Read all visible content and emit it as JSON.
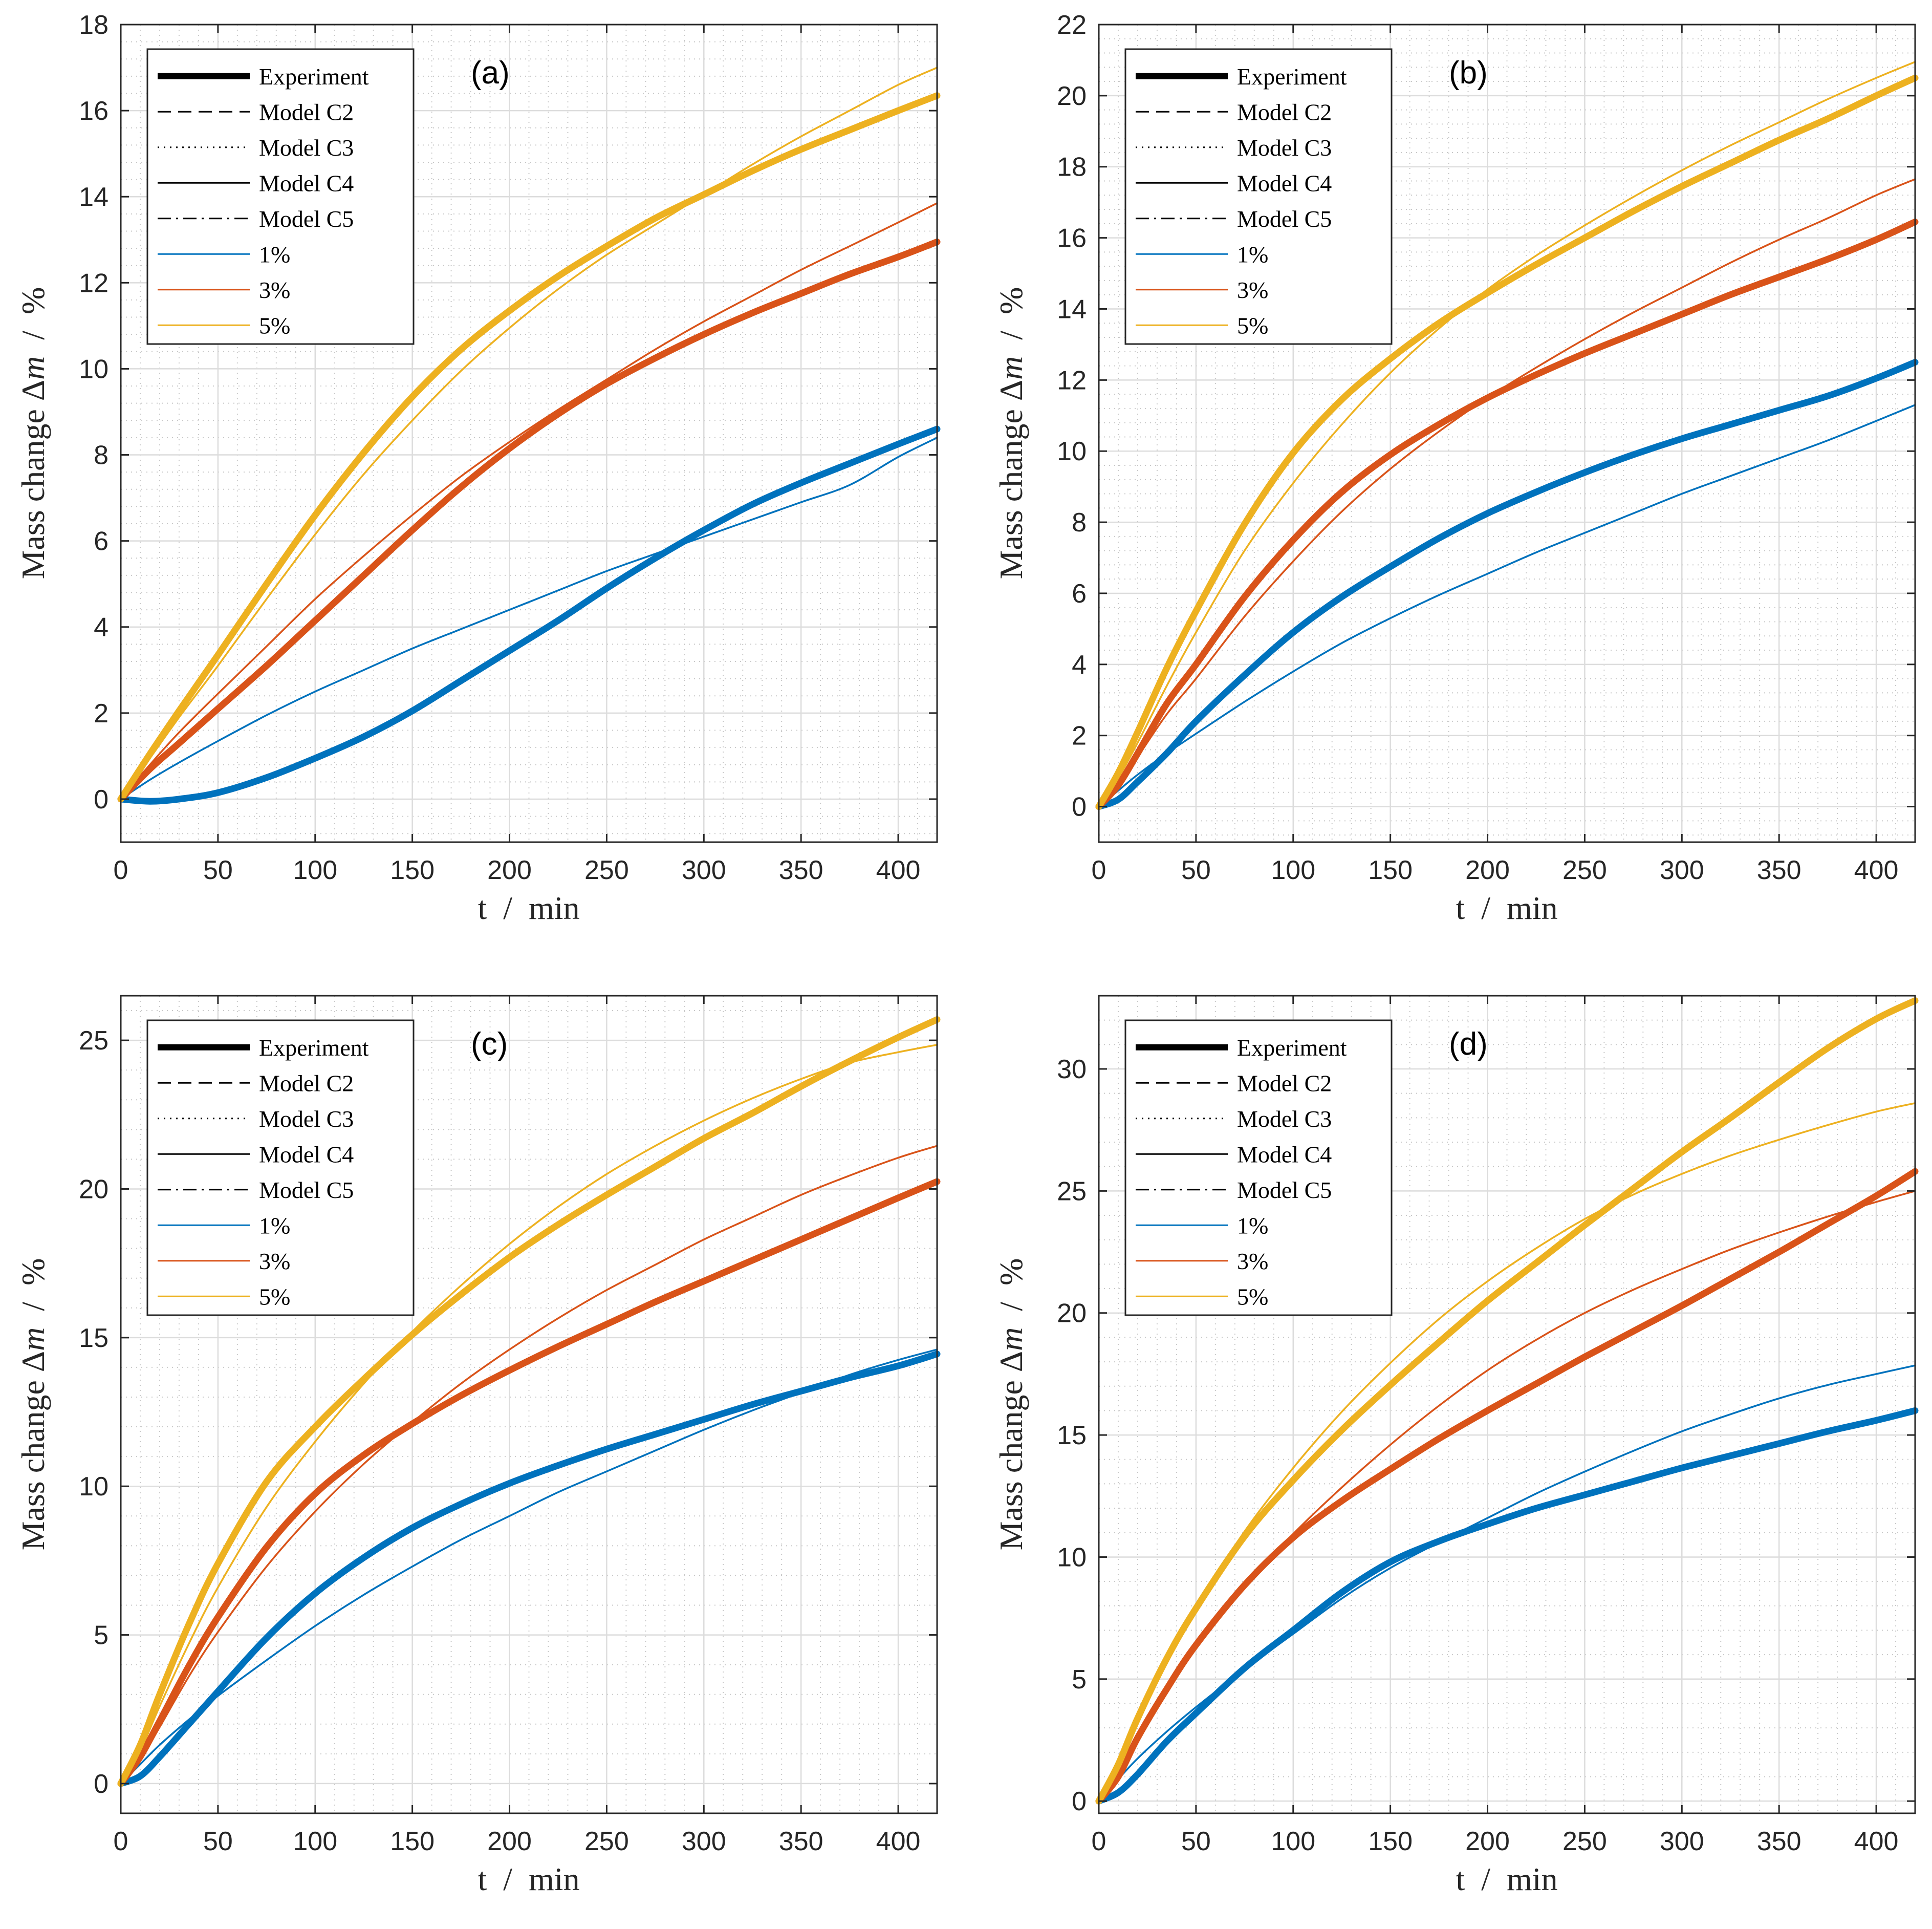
{
  "figure": {
    "xlabel": "t  /  min",
    "ylabel_prefix": "Mass change Δ",
    "ylabel_var": "m",
    "ylabel_sep": "  /  ",
    "ylabel_unit": "%"
  },
  "legend": [
    {
      "label": "Experiment",
      "style": "thick-solid",
      "color": "#000000"
    },
    {
      "label": "Model C2",
      "style": "dashed",
      "color": "#000000"
    },
    {
      "label": "Model C3",
      "style": "dotted",
      "color": "#000000"
    },
    {
      "label": "Model C4",
      "style": "solid",
      "color": "#000000"
    },
    {
      "label": "Model C5",
      "style": "dashdot",
      "color": "#000000"
    },
    {
      "label": "1%",
      "style": "solid",
      "color": "#0072BD"
    },
    {
      "label": "3%",
      "style": "solid",
      "color": "#D95319"
    },
    {
      "label": "5%",
      "style": "solid",
      "color": "#EDB120"
    }
  ],
  "chart_data": [
    {
      "type": "line",
      "tag": "(a)",
      "xlabel": "t  /  min",
      "ylabel": "Mass change Δm  /  %",
      "xlim": [
        0,
        420
      ],
      "ylim": [
        -1,
        18
      ],
      "xticks": [
        0,
        50,
        100,
        150,
        200,
        250,
        300,
        350,
        400
      ],
      "yticks": [
        0,
        2,
        4,
        6,
        8,
        10,
        12,
        14,
        16,
        18
      ],
      "grid": true,
      "legend_position": "top-left",
      "x": [
        0,
        15,
        30,
        50,
        75,
        100,
        125,
        150,
        175,
        200,
        225,
        250,
        275,
        300,
        325,
        350,
        375,
        400,
        420
      ],
      "series": [
        {
          "name": "1% Experiment",
          "kind": "experiment",
          "color": "#0072BD",
          "values": [
            0,
            -0.05,
            0.0,
            0.15,
            0.5,
            0.95,
            1.45,
            2.05,
            2.75,
            3.45,
            4.15,
            4.9,
            5.6,
            6.25,
            6.85,
            7.35,
            7.8,
            8.25,
            8.6
          ]
        },
        {
          "name": "1% Model",
          "kind": "model",
          "color": "#0072BD",
          "values": [
            0,
            0.45,
            0.85,
            1.35,
            1.95,
            2.5,
            3.0,
            3.5,
            3.95,
            4.4,
            4.85,
            5.3,
            5.7,
            6.1,
            6.5,
            6.9,
            7.3,
            7.95,
            8.4
          ]
        },
        {
          "name": "3% Experiment",
          "kind": "experiment",
          "color": "#D95319",
          "values": [
            0,
            0.7,
            1.3,
            2.1,
            3.1,
            4.15,
            5.2,
            6.25,
            7.25,
            8.15,
            8.95,
            9.65,
            10.25,
            10.8,
            11.3,
            11.75,
            12.2,
            12.6,
            12.95
          ]
        },
        {
          "name": "3% Model",
          "kind": "model",
          "color": "#D95319",
          "values": [
            0,
            0.8,
            1.55,
            2.45,
            3.55,
            4.65,
            5.65,
            6.6,
            7.5,
            8.3,
            9.05,
            9.75,
            10.45,
            11.1,
            11.7,
            12.3,
            12.85,
            13.4,
            13.85
          ]
        },
        {
          "name": "5% Experiment",
          "kind": "experiment",
          "color": "#EDB120",
          "values": [
            0,
            1.05,
            2.05,
            3.35,
            5.0,
            6.6,
            8.05,
            9.35,
            10.45,
            11.35,
            12.15,
            12.85,
            13.5,
            14.05,
            14.6,
            15.1,
            15.55,
            16.0,
            16.35
          ]
        },
        {
          "name": "5% Model",
          "kind": "model",
          "color": "#EDB120",
          "values": [
            0,
            0.95,
            1.9,
            3.1,
            4.65,
            6.15,
            7.55,
            8.8,
            9.95,
            10.95,
            11.85,
            12.65,
            13.35,
            14.05,
            14.75,
            15.4,
            16.0,
            16.6,
            17.0
          ]
        }
      ]
    },
    {
      "type": "line",
      "tag": "(b)",
      "xlabel": "t  /  min",
      "ylabel": "Mass change Δm  /  %",
      "xlim": [
        0,
        420
      ],
      "ylim": [
        -1,
        22
      ],
      "xticks": [
        0,
        50,
        100,
        150,
        200,
        250,
        300,
        350,
        400
      ],
      "yticks": [
        0,
        2,
        4,
        6,
        8,
        10,
        12,
        14,
        16,
        18,
        20,
        22
      ],
      "grid": true,
      "legend_position": "top-left",
      "x": [
        0,
        10,
        20,
        35,
        50,
        75,
        100,
        125,
        150,
        175,
        200,
        225,
        250,
        275,
        300,
        325,
        350,
        375,
        400,
        420
      ],
      "series": [
        {
          "name": "1% Experiment",
          "kind": "experiment",
          "color": "#0072BD",
          "values": [
            0,
            0.2,
            0.7,
            1.5,
            2.4,
            3.7,
            4.9,
            5.9,
            6.75,
            7.55,
            8.25,
            8.85,
            9.4,
            9.9,
            10.35,
            10.75,
            11.15,
            11.55,
            12.05,
            12.5
          ]
        },
        {
          "name": "1% Model",
          "kind": "model",
          "color": "#0072BD",
          "values": [
            0,
            0.45,
            0.9,
            1.5,
            2.05,
            2.95,
            3.8,
            4.6,
            5.3,
            5.95,
            6.55,
            7.15,
            7.7,
            8.25,
            8.8,
            9.3,
            9.8,
            10.3,
            10.85,
            11.3
          ]
        },
        {
          "name": "3% Experiment",
          "kind": "experiment",
          "color": "#D95319",
          "values": [
            0,
            0.6,
            1.5,
            2.9,
            4.0,
            5.9,
            7.5,
            8.85,
            9.9,
            10.75,
            11.5,
            12.15,
            12.75,
            13.3,
            13.85,
            14.4,
            14.9,
            15.4,
            15.95,
            16.45
          ]
        },
        {
          "name": "3% Model",
          "kind": "model",
          "color": "#D95319",
          "values": [
            0,
            0.6,
            1.4,
            2.6,
            3.6,
            5.35,
            6.9,
            8.3,
            9.5,
            10.55,
            11.5,
            12.35,
            13.15,
            13.9,
            14.6,
            15.3,
            15.95,
            16.55,
            17.2,
            17.65
          ]
        },
        {
          "name": "5% Experiment",
          "kind": "experiment",
          "color": "#EDB120",
          "values": [
            0,
            0.95,
            2.1,
            3.9,
            5.5,
            7.95,
            9.95,
            11.45,
            12.6,
            13.6,
            14.45,
            15.25,
            16.0,
            16.75,
            17.45,
            18.1,
            18.75,
            19.35,
            20.0,
            20.5
          ]
        },
        {
          "name": "5% Model",
          "kind": "model",
          "color": "#EDB120",
          "values": [
            0,
            0.8,
            1.8,
            3.4,
            4.9,
            7.2,
            9.1,
            10.75,
            12.2,
            13.45,
            14.55,
            15.5,
            16.35,
            17.15,
            17.9,
            18.6,
            19.25,
            19.9,
            20.5,
            20.95
          ]
        }
      ]
    },
    {
      "type": "line",
      "tag": "(c)",
      "xlabel": "t  /  min",
      "ylabel": "Mass change Δm  /  %",
      "xlim": [
        0,
        420
      ],
      "ylim": [
        -1,
        26.5
      ],
      "xticks": [
        0,
        50,
        100,
        150,
        200,
        250,
        300,
        350,
        400
      ],
      "yticks": [
        0,
        5,
        10,
        15,
        20,
        25
      ],
      "grid": true,
      "legend_position": "top-left",
      "x": [
        0,
        10,
        20,
        35,
        50,
        75,
        100,
        125,
        150,
        175,
        200,
        225,
        250,
        275,
        300,
        325,
        350,
        375,
        400,
        420
      ],
      "series": [
        {
          "name": "1% Experiment",
          "kind": "experiment",
          "color": "#0072BD",
          "values": [
            0,
            0.25,
            0.9,
            2.0,
            3.1,
            4.9,
            6.4,
            7.6,
            8.6,
            9.4,
            10.1,
            10.7,
            11.25,
            11.75,
            12.25,
            12.75,
            13.2,
            13.65,
            14.05,
            14.45
          ]
        },
        {
          "name": "1% Model",
          "kind": "model",
          "color": "#0072BD",
          "values": [
            0,
            0.65,
            1.3,
            2.15,
            2.95,
            4.15,
            5.3,
            6.35,
            7.3,
            8.2,
            9.0,
            9.8,
            10.5,
            11.2,
            11.9,
            12.55,
            13.15,
            13.75,
            14.25,
            14.6
          ]
        },
        {
          "name": "3% Experiment",
          "kind": "experiment",
          "color": "#D95319",
          "values": [
            0,
            0.9,
            2.1,
            3.95,
            5.6,
            7.95,
            9.75,
            11.05,
            12.1,
            13.05,
            13.9,
            14.7,
            15.45,
            16.2,
            16.9,
            17.6,
            18.3,
            19.0,
            19.7,
            20.25
          ]
        },
        {
          "name": "3% Model",
          "kind": "model",
          "color": "#D95319",
          "values": [
            0,
            0.8,
            1.9,
            3.6,
            5.1,
            7.3,
            9.15,
            10.75,
            12.15,
            13.45,
            14.6,
            15.65,
            16.6,
            17.45,
            18.3,
            19.05,
            19.8,
            20.45,
            21.05,
            21.45
          ]
        },
        {
          "name": "5% Experiment",
          "kind": "experiment",
          "color": "#EDB120",
          "values": [
            0,
            1.3,
            3.0,
            5.35,
            7.4,
            10.15,
            12.0,
            13.6,
            15.1,
            16.45,
            17.7,
            18.8,
            19.8,
            20.75,
            21.7,
            22.55,
            23.45,
            24.3,
            25.1,
            25.7
          ]
        },
        {
          "name": "5% Model",
          "kind": "model",
          "color": "#EDB120",
          "values": [
            0,
            1.1,
            2.6,
            4.7,
            6.6,
            9.3,
            11.5,
            13.45,
            15.2,
            16.75,
            18.15,
            19.4,
            20.5,
            21.45,
            22.3,
            23.05,
            23.7,
            24.25,
            24.6,
            24.85
          ]
        }
      ]
    },
    {
      "type": "line",
      "tag": "(d)",
      "xlabel": "t  /  min",
      "ylabel": "Mass change Δm  /  %",
      "xlim": [
        0,
        420
      ],
      "ylim": [
        -0.5,
        33
      ],
      "xticks": [
        0,
        50,
        100,
        150,
        200,
        250,
        300,
        350,
        400
      ],
      "yticks": [
        0,
        5,
        10,
        15,
        20,
        25,
        30
      ],
      "grid": true,
      "legend_position": "top-left",
      "x": [
        0,
        10,
        20,
        35,
        50,
        75,
        100,
        125,
        150,
        175,
        200,
        225,
        250,
        275,
        300,
        325,
        350,
        375,
        400,
        420
      ],
      "series": [
        {
          "name": "1% Experiment",
          "kind": "experiment",
          "color": "#0072BD",
          "values": [
            0,
            0.35,
            1.1,
            2.45,
            3.6,
            5.45,
            7.0,
            8.55,
            9.8,
            10.65,
            11.35,
            12.0,
            12.55,
            13.1,
            13.65,
            14.15,
            14.65,
            15.15,
            15.6,
            16.0
          ]
        },
        {
          "name": "1% Model",
          "kind": "model",
          "color": "#0072BD",
          "values": [
            0,
            0.9,
            1.75,
            2.85,
            3.85,
            5.4,
            6.85,
            8.3,
            9.55,
            10.6,
            11.6,
            12.6,
            13.5,
            14.35,
            15.15,
            15.85,
            16.5,
            17.05,
            17.5,
            17.85
          ]
        },
        {
          "name": "3% Experiment",
          "kind": "experiment",
          "color": "#D95319",
          "values": [
            0,
            1.0,
            2.6,
            4.6,
            6.4,
            8.85,
            10.8,
            12.3,
            13.6,
            14.85,
            16.0,
            17.1,
            18.2,
            19.25,
            20.3,
            21.4,
            22.5,
            23.65,
            24.8,
            25.8
          ]
        },
        {
          "name": "3% Model",
          "kind": "model",
          "color": "#D95319",
          "values": [
            0,
            0.9,
            2.45,
            4.5,
            6.3,
            8.85,
            10.95,
            12.85,
            14.6,
            16.2,
            17.65,
            18.9,
            20.0,
            20.95,
            21.8,
            22.6,
            23.3,
            23.95,
            24.55,
            25.0
          ]
        },
        {
          "name": "5% Experiment",
          "kind": "experiment",
          "color": "#EDB120",
          "values": [
            0,
            1.5,
            3.4,
            5.85,
            7.9,
            10.85,
            13.15,
            15.2,
            17.05,
            18.8,
            20.5,
            22.05,
            23.6,
            25.1,
            26.6,
            28.0,
            29.45,
            30.85,
            32.05,
            32.8
          ]
        },
        {
          "name": "5% Model",
          "kind": "model",
          "color": "#EDB120",
          "values": [
            0,
            1.3,
            3.15,
            5.7,
            7.95,
            11.05,
            13.65,
            15.95,
            17.95,
            19.75,
            21.3,
            22.65,
            23.85,
            24.85,
            25.7,
            26.45,
            27.1,
            27.7,
            28.25,
            28.6
          ]
        }
      ]
    }
  ]
}
